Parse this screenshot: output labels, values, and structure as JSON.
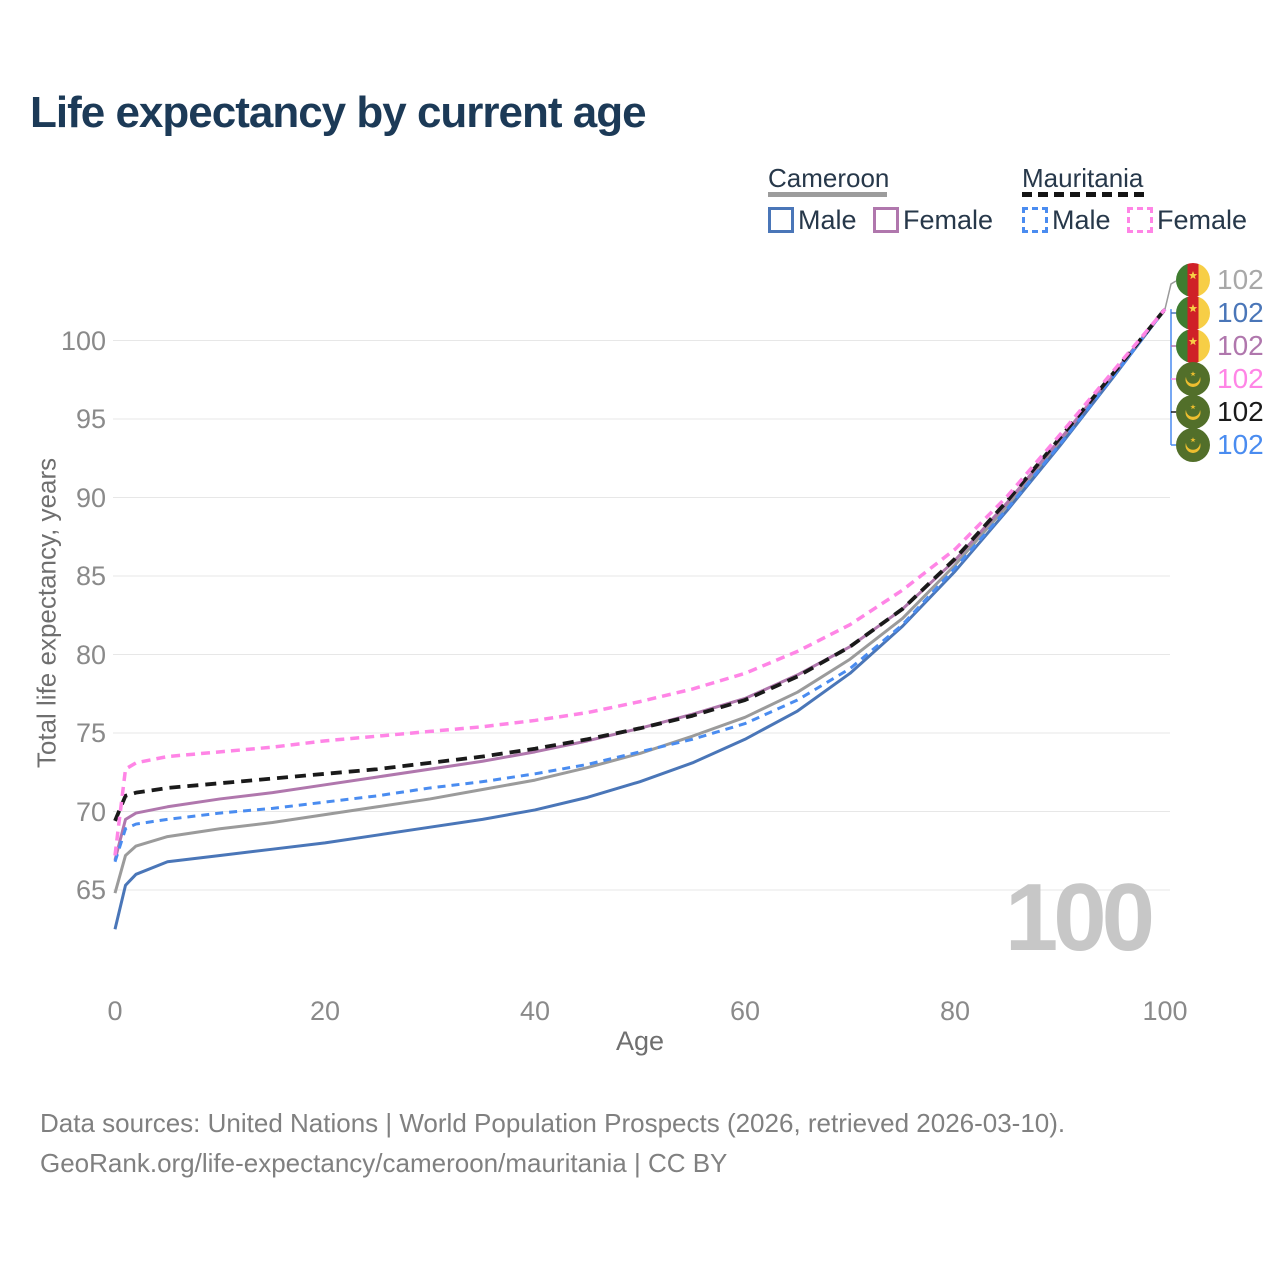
{
  "title": "Life expectancy by current age",
  "legend": {
    "groups": [
      {
        "name": "Cameroon",
        "line_style": "solid",
        "underline_color": "#9c9c9c",
        "items": [
          {
            "label": "Male",
            "color": "#4a76b8",
            "dashed": false
          },
          {
            "label": "Female",
            "color": "#b077ad",
            "dashed": false
          }
        ]
      },
      {
        "name": "Mauritania",
        "line_style": "dashed",
        "underline_color": "#141414",
        "items": [
          {
            "label": "Male",
            "color": "#4a8cf0",
            "dashed": true
          },
          {
            "label": "Female",
            "color": "#ff85e6",
            "dashed": true
          }
        ]
      }
    ]
  },
  "chart_data": {
    "type": "line",
    "title": "Life expectancy by current age",
    "xlabel": "Age",
    "ylabel": "Total life expectancy, years",
    "xlim": [
      0,
      100
    ],
    "ylim": [
      61.5,
      103.5
    ],
    "x_ticks": [
      0,
      20,
      40,
      60,
      80,
      100
    ],
    "y_ticks": [
      65,
      70,
      75,
      80,
      85,
      90,
      95,
      100
    ],
    "grid": "horizontal",
    "legend_position": "top-right",
    "watermark": "100",
    "ages": [
      0,
      1,
      2,
      5,
      10,
      15,
      20,
      25,
      30,
      35,
      40,
      45,
      50,
      55,
      60,
      65,
      70,
      75,
      80,
      85,
      90,
      95,
      100
    ],
    "series": [
      {
        "name": "Cameroon Both sexes",
        "color": "#9b9b9b",
        "dash": "",
        "width": 3,
        "values": [
          64.8,
          67.2,
          67.8,
          68.4,
          68.9,
          69.3,
          69.8,
          70.3,
          70.8,
          71.4,
          72.0,
          72.8,
          73.7,
          74.8,
          76.0,
          77.6,
          79.7,
          82.3,
          85.7,
          89.5,
          93.5,
          97.7,
          102
        ]
      },
      {
        "name": "Cameroon Male",
        "color": "#4a76b8",
        "dash": "",
        "width": 3,
        "values": [
          62.5,
          65.3,
          66.0,
          66.8,
          67.2,
          67.6,
          68.0,
          68.5,
          69.0,
          69.5,
          70.1,
          70.9,
          71.9,
          73.1,
          74.6,
          76.4,
          78.8,
          81.8,
          85.3,
          89.2,
          93.3,
          97.6,
          102
        ]
      },
      {
        "name": "Cameroon Female",
        "color": "#b077ad",
        "dash": "",
        "width": 3,
        "values": [
          66.9,
          69.5,
          69.9,
          70.3,
          70.8,
          71.2,
          71.7,
          72.2,
          72.7,
          73.2,
          73.8,
          74.5,
          75.3,
          76.2,
          77.2,
          78.7,
          80.5,
          82.9,
          86.0,
          89.7,
          93.7,
          97.8,
          102
        ]
      },
      {
        "name": "Mauritania Male",
        "color": "#4a8cf0",
        "dash": "8 6",
        "width": 3,
        "values": [
          66.8,
          68.9,
          69.2,
          69.5,
          69.9,
          70.2,
          70.6,
          71.0,
          71.5,
          71.9,
          72.4,
          73.0,
          73.8,
          74.6,
          75.6,
          77.1,
          79.1,
          81.9,
          85.5,
          89.3,
          93.4,
          97.65,
          102
        ]
      },
      {
        "name": "Mauritania Both sexes",
        "color": "#1a1a1a",
        "dash": "11 7",
        "width": 3.8,
        "values": [
          69.4,
          71.0,
          71.2,
          71.5,
          71.8,
          72.1,
          72.4,
          72.7,
          73.1,
          73.5,
          74.0,
          74.6,
          75.3,
          76.1,
          77.1,
          78.6,
          80.5,
          82.9,
          86.1,
          89.8,
          93.8,
          97.85,
          102
        ]
      },
      {
        "name": "Mauritania Female",
        "color": "#ff85e6",
        "dash": "9 6",
        "width": 3.5,
        "values": [
          67.2,
          72.7,
          73.1,
          73.5,
          73.8,
          74.1,
          74.5,
          74.8,
          75.1,
          75.4,
          75.8,
          76.3,
          77.0,
          77.8,
          78.8,
          80.2,
          81.9,
          84.1,
          86.7,
          90.1,
          94.0,
          98.0,
          102
        ]
      }
    ],
    "end_labels": [
      {
        "country": "Cameroon",
        "flag": "cameroon",
        "value": "102",
        "color": "#a8a8a8"
      },
      {
        "country": "Cameroon",
        "flag": "cameroon",
        "value": "102",
        "color": "#4a76b8"
      },
      {
        "country": "Cameroon",
        "flag": "cameroon",
        "value": "102",
        "color": "#b077ad"
      },
      {
        "country": "Mauritania",
        "flag": "mauritania",
        "value": "102",
        "color": "#ff85e6"
      },
      {
        "country": "Mauritania",
        "flag": "mauritania",
        "value": "102",
        "color": "#1a1a1a"
      },
      {
        "country": "Mauritania",
        "flag": "mauritania",
        "value": "102",
        "color": "#4a8cf0"
      }
    ]
  },
  "footer": {
    "line1": "Data sources: United Nations | World Population Prospects (2026, retrieved 2026-03-10).",
    "line2": "GeoRank.org/life-expectancy/cameroon/mauritania | CC BY"
  }
}
